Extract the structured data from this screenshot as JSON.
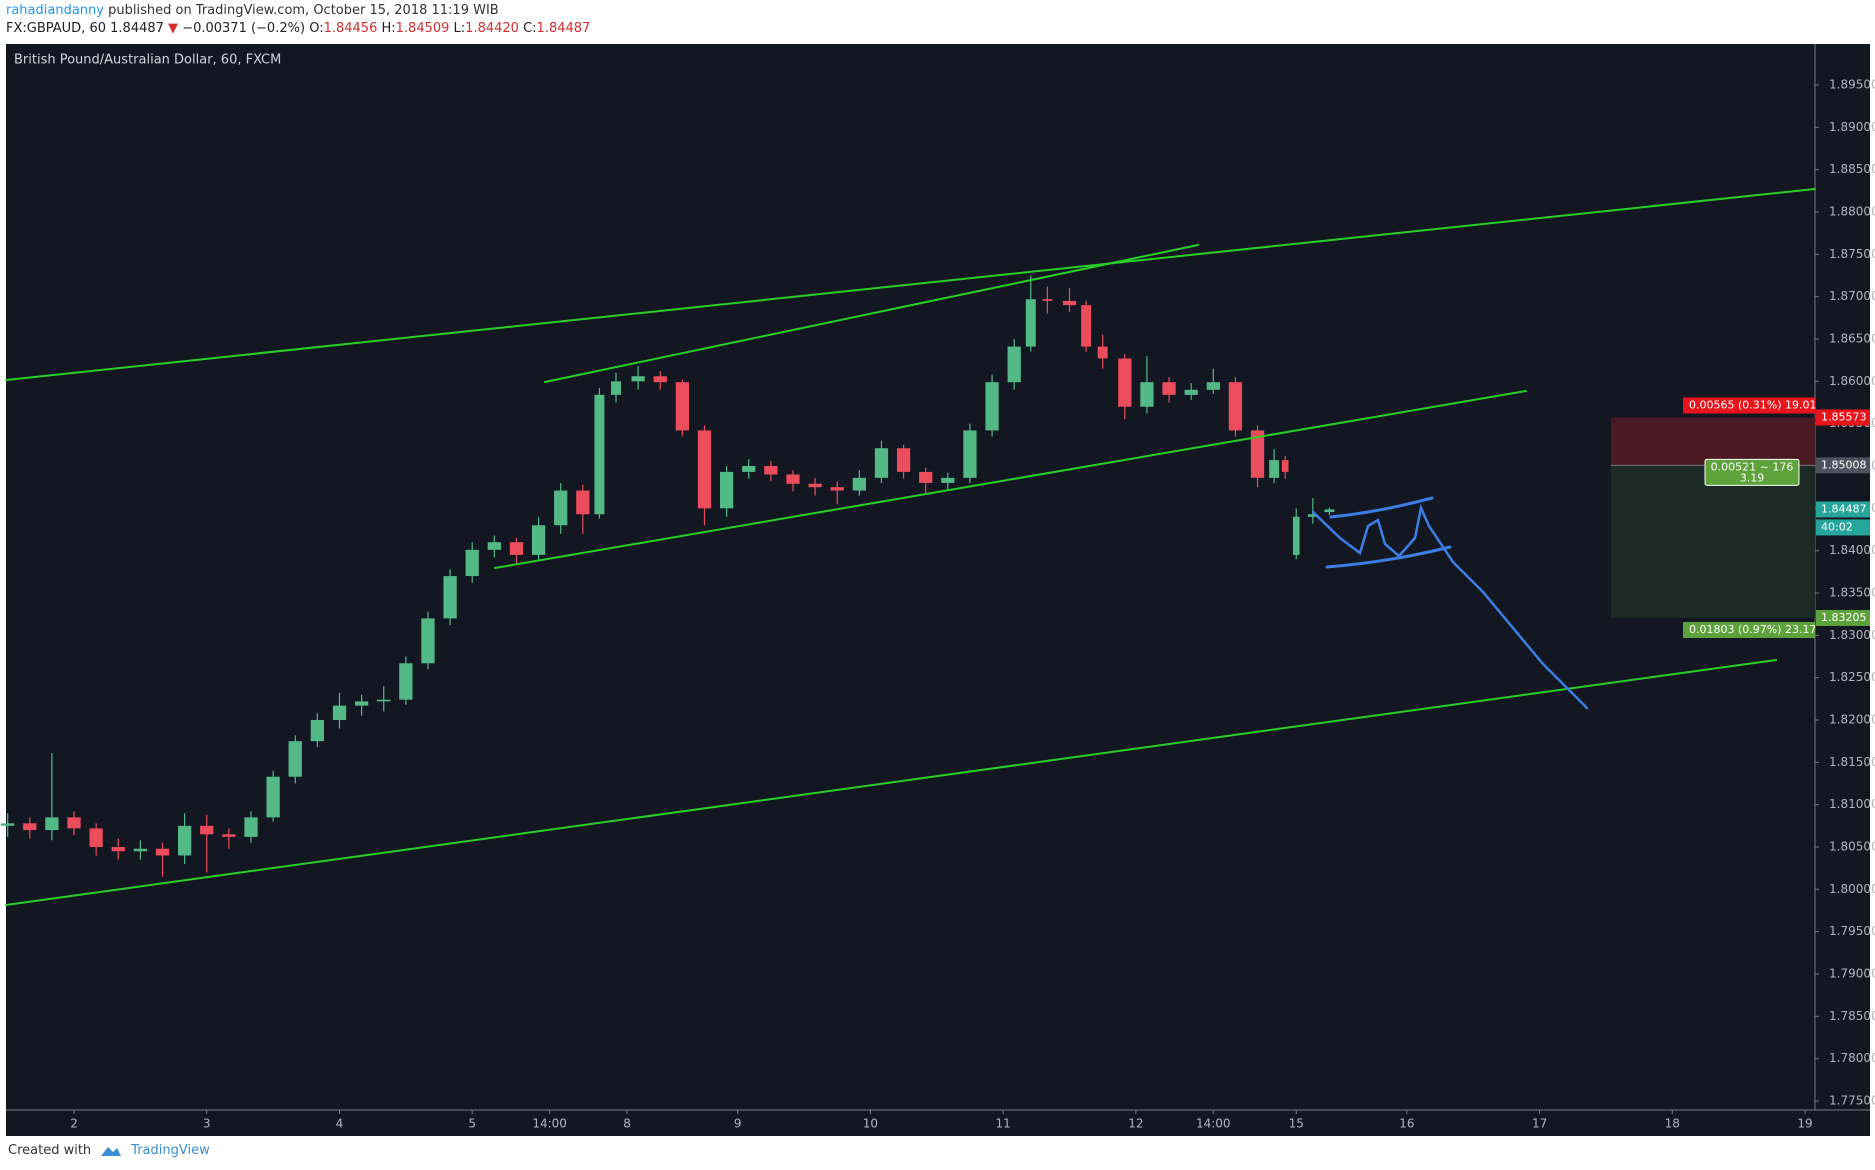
{
  "header": {
    "author": "rahadiandanny",
    "published": "published on TradingView.com, October 15, 2018 11:19 WIB",
    "symbol": "FX:GBPAUD, 60",
    "last": "1.84487",
    "arrow": "▼",
    "change": "−0.00371 (−0.2%)",
    "o_label": "O:",
    "o": "1.84456",
    "h_label": "H:",
    "h": "1.84509",
    "l_label": "L:",
    "l": "1.84420",
    "c_label": "C:",
    "c": "1.84487"
  },
  "footer": {
    "created": "Created with",
    "brand": "TradingView"
  },
  "chart_data": {
    "type": "candlestick",
    "title": "British Pound/Australian Dollar, 60, FXCM",
    "x": [
      -12,
      -8,
      -4,
      0,
      4,
      8,
      12,
      16,
      20,
      24,
      28,
      32,
      36,
      40,
      44,
      48,
      52,
      56,
      60,
      64,
      68,
      72,
      76,
      80,
      84,
      88,
      92,
      95,
      98,
      102,
      106,
      110,
      114,
      118,
      122,
      126,
      130,
      134,
      138,
      142,
      146,
      150,
      154,
      158,
      162,
      166,
      170,
      173,
      176,
      180,
      183,
      186,
      190,
      194,
      198,
      202,
      206,
      210,
      214,
      217,
      219,
      221,
      224,
      227
    ],
    "open": [
      1.8075,
      1.8078,
      1.807,
      1.8085,
      1.8072,
      1.805,
      1.8045,
      1.8048,
      1.804,
      1.8075,
      1.8065,
      1.8062,
      1.8085,
      1.8133,
      1.8175,
      1.82,
      1.8217,
      1.8222,
      1.8224,
      1.8267,
      1.832,
      1.837,
      1.8401,
      1.841,
      1.8395,
      1.843,
      1.8471,
      1.8443,
      1.8584,
      1.86,
      1.8606,
      1.8599,
      1.8542,
      1.845,
      1.8493,
      1.85,
      1.849,
      1.8479,
      1.8475,
      1.8471,
      1.8486,
      1.8521,
      1.8493,
      1.848,
      1.8486,
      1.8542,
      1.8599,
      1.8641,
      1.8697,
      1.8695,
      1.869,
      1.8641,
      1.8627,
      1.857,
      1.8599,
      1.8584,
      1.859,
      1.8599,
      1.8542,
      1.8486,
      1.8507,
      1.8395,
      1.844,
      1.84456
    ],
    "high": [
      1.809,
      1.8085,
      1.8161,
      1.8092,
      1.8078,
      1.806,
      1.8058,
      1.8055,
      1.809,
      1.8088,
      1.8072,
      1.8092,
      1.814,
      1.8182,
      1.8208,
      1.8232,
      1.823,
      1.824,
      1.8275,
      1.8328,
      1.8378,
      1.841,
      1.8418,
      1.8415,
      1.844,
      1.848,
      1.8478,
      1.8592,
      1.861,
      1.8618,
      1.8612,
      1.8602,
      1.8548,
      1.85,
      1.8508,
      1.8506,
      1.8495,
      1.8486,
      1.8482,
      1.8495,
      1.853,
      1.8525,
      1.8498,
      1.8492,
      1.855,
      1.8608,
      1.865,
      1.8725,
      1.8712,
      1.871,
      1.8695,
      1.8655,
      1.8632,
      1.863,
      1.8605,
      1.8598,
      1.8615,
      1.8605,
      1.8548,
      1.852,
      1.8512,
      1.845,
      1.8462,
      1.84509
    ],
    "low": [
      1.8062,
      1.806,
      1.8058,
      1.8064,
      1.804,
      1.8035,
      1.8035,
      1.8015,
      1.803,
      1.802,
      1.8048,
      1.8055,
      1.808,
      1.8125,
      1.8168,
      1.819,
      1.8205,
      1.821,
      1.8218,
      1.826,
      1.8312,
      1.8362,
      1.8392,
      1.8385,
      1.8388,
      1.842,
      1.842,
      1.8438,
      1.8575,
      1.859,
      1.859,
      1.8535,
      1.843,
      1.844,
      1.8485,
      1.8482,
      1.847,
      1.8465,
      1.8455,
      1.8465,
      1.848,
      1.8485,
      1.8468,
      1.8472,
      1.848,
      1.8535,
      1.859,
      1.8635,
      1.868,
      1.8682,
      1.8635,
      1.8615,
      1.8555,
      1.8562,
      1.8575,
      1.8578,
      1.8585,
      1.8535,
      1.8475,
      1.848,
      1.8485,
      1.839,
      1.8432,
      1.8442
    ],
    "close": [
      1.8078,
      1.807,
      1.8085,
      1.8072,
      1.805,
      1.8045,
      1.8048,
      1.804,
      1.8075,
      1.8065,
      1.8062,
      1.8085,
      1.8133,
      1.8175,
      1.82,
      1.8217,
      1.8222,
      1.8224,
      1.8267,
      1.832,
      1.837,
      1.8401,
      1.841,
      1.8395,
      1.843,
      1.8471,
      1.8443,
      1.8584,
      1.86,
      1.8606,
      1.8599,
      1.8542,
      1.845,
      1.8493,
      1.85,
      1.849,
      1.8479,
      1.8475,
      1.8471,
      1.8486,
      1.8521,
      1.8493,
      1.848,
      1.8486,
      1.8542,
      1.8599,
      1.8641,
      1.8697,
      1.8695,
      1.869,
      1.8641,
      1.8627,
      1.857,
      1.8599,
      1.8584,
      1.859,
      1.8599,
      1.8542,
      1.8486,
      1.8507,
      1.8493,
      1.844,
      1.8443,
      1.84487
    ],
    "up_color": "#53b987",
    "down_color": "#eb4d5c",
    "xlim": [
      -12.3,
      314.8
    ],
    "xticks": [
      {
        "value": 0,
        "label": "2"
      },
      {
        "value": 24,
        "label": "3"
      },
      {
        "value": 48,
        "label": "4"
      },
      {
        "value": 72,
        "label": "5"
      },
      {
        "value": 86,
        "label": "14:00"
      },
      {
        "value": 100,
        "label": "8"
      },
      {
        "value": 120,
        "label": "9"
      },
      {
        "value": 144,
        "label": "10"
      },
      {
        "value": 168,
        "label": "11"
      },
      {
        "value": 192,
        "label": "12"
      },
      {
        "value": 206,
        "label": "14:00"
      },
      {
        "value": 221,
        "label": "15"
      },
      {
        "value": 241,
        "label": "16"
      },
      {
        "value": 265,
        "label": "17"
      },
      {
        "value": 289,
        "label": "18"
      },
      {
        "value": 313,
        "label": "19"
      }
    ],
    "ylim": [
      1.77394,
      1.89984
    ],
    "yticks": [
      {
        "value": 1.895,
        "label": "1.89500"
      },
      {
        "value": 1.89,
        "label": "1.89000"
      },
      {
        "value": 1.885,
        "label": "1.88500"
      },
      {
        "value": 1.88,
        "label": "1.88000"
      },
      {
        "value": 1.875,
        "label": "1.87500"
      },
      {
        "value": 1.87,
        "label": "1.87000"
      },
      {
        "value": 1.865,
        "label": "1.86500"
      },
      {
        "value": 1.86,
        "label": "1.86000"
      },
      {
        "value": 1.855,
        "label": "1.85500"
      },
      {
        "value": 1.85,
        "label": "1.85000"
      },
      {
        "value": 1.845,
        "label": "1.84500"
      },
      {
        "value": 1.84,
        "label": "1.84000"
      },
      {
        "value": 1.835,
        "label": "1.83500"
      },
      {
        "value": 1.83,
        "label": "1.83000"
      },
      {
        "value": 1.825,
        "label": "1.82500"
      },
      {
        "value": 1.82,
        "label": "1.82000"
      },
      {
        "value": 1.815,
        "label": "1.81500"
      },
      {
        "value": 1.81,
        "label": "1.81000"
      },
      {
        "value": 1.805,
        "label": "1.80500"
      },
      {
        "value": 1.8,
        "label": "1.80000"
      },
      {
        "value": 1.795,
        "label": "1.79500"
      },
      {
        "value": 1.79,
        "label": "1.79000"
      },
      {
        "value": 1.785,
        "label": "1.78500"
      },
      {
        "value": 1.78,
        "label": "1.78000"
      },
      {
        "value": 1.775,
        "label": "1.77500"
      }
    ],
    "countdown": "40:02",
    "position_tool": {
      "stop": 1.85573,
      "entry": 1.85008,
      "target": 1.83205,
      "stop_label": "0.00565 (0.31%) 19.01",
      "info": "0.00521 ~ 176",
      "ratio": "3.19",
      "target_label": "0.01803 (0.97%) 23.17"
    }
  }
}
